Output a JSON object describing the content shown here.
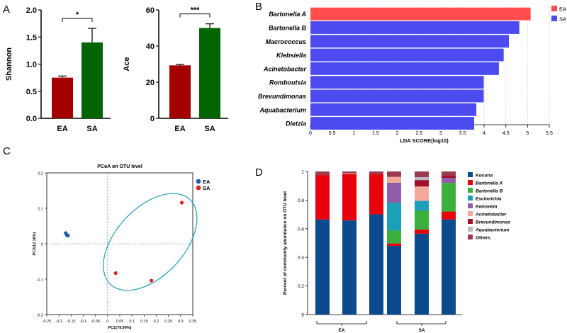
{
  "panel_letters": [
    "A",
    "B",
    "C",
    "D"
  ],
  "chart_data": [
    {
      "panel": "A",
      "type": "bar",
      "ylabel": "Shannon",
      "categories": [
        "EA",
        "SA"
      ],
      "values": [
        0.75,
        1.4
      ],
      "errors": [
        0.03,
        0.26
      ],
      "colors": [
        "#a50000",
        "#006400"
      ],
      "ylim": [
        0,
        2.0
      ],
      "yticks": [
        "0.0",
        "0.5",
        "1.0",
        "1.5",
        "2.0"
      ],
      "significance": "*"
    },
    {
      "panel": "A",
      "type": "bar",
      "ylabel": "Ace",
      "categories": [
        "EA",
        "SA"
      ],
      "values": [
        29.3,
        50.0
      ],
      "errors": [
        0.6,
        2.3
      ],
      "colors": [
        "#a50000",
        "#006400"
      ],
      "ylim": [
        0,
        60
      ],
      "yticks": [
        "0",
        "20",
        "40",
        "60"
      ],
      "significance": "***"
    },
    {
      "panel": "B",
      "type": "bar",
      "orientation": "horizontal",
      "xlabel": "LDA SCORE(log10)",
      "categories": [
        "Bartonella A",
        "Bartonella B",
        "Macrococcus",
        "Klebsiella",
        "Acinetobacter",
        "Romboutsia",
        "Brevundimonas",
        "Aquabacterium",
        "Dietzia"
      ],
      "values": [
        5.07,
        4.81,
        4.57,
        4.45,
        4.34,
        3.99,
        3.99,
        3.82,
        3.77
      ],
      "groups": [
        "EA",
        "SA",
        "SA",
        "SA",
        "SA",
        "SA",
        "SA",
        "SA",
        "SA"
      ],
      "legend": [
        {
          "name": "EA",
          "color": "#ff4d4d"
        },
        {
          "name": "SA",
          "color": "#4b4bf0"
        }
      ],
      "xlim": [
        0,
        5.5
      ],
      "xticks": [
        "0",
        "0.5",
        "1",
        "1.5",
        "2",
        "2.5",
        "3",
        "3.5",
        "4",
        "4.5",
        "5",
        "5.5"
      ]
    },
    {
      "panel": "C",
      "type": "scatter",
      "title": "PCoA on OTU level",
      "xlabel": "PC1(79.99%)",
      "ylabel": "PC2(12.16%)",
      "xlim": [
        -0.25,
        0.35
      ],
      "ylim": [
        -0.2,
        0.2
      ],
      "xticks": [
        "-0.25",
        "-0.2",
        "-0.15",
        "-0.1",
        "-0.05",
        "0",
        "0.05",
        "0.1",
        "0.15",
        "0.2",
        "0.25",
        "0.3",
        "0.35"
      ],
      "yticks": [
        "-0.2",
        "-0.1",
        "0",
        "0.1",
        "0.2"
      ],
      "series": [
        {
          "name": "EA",
          "color": "#1f5aa6",
          "points": [
            [
              -0.172,
              0.03
            ],
            [
              -0.167,
              0.024
            ],
            [
              -0.163,
              0.023
            ]
          ]
        },
        {
          "name": "SA",
          "color": "#e02020",
          "points": [
            [
              0.305,
              0.116
            ],
            [
              0.033,
              -0.083
            ],
            [
              0.18,
              -0.104
            ]
          ]
        }
      ],
      "ellipse_color": "#1aa0b0"
    },
    {
      "panel": "D",
      "type": "bar",
      "stacked": true,
      "ylabel": "Percent of community abundance on OTU level",
      "ylim": [
        0,
        1
      ],
      "yticks": [
        "0",
        "0.2",
        "0.4",
        "0.6",
        "0.8",
        "1"
      ],
      "group_labels": [
        "EA",
        "SA"
      ],
      "group_sizes": [
        3,
        3
      ],
      "series": [
        {
          "name": "Kocuria",
          "color": "#0b4a8c",
          "values": [
            0.665,
            0.658,
            0.7,
            0.48,
            0.565,
            0.665
          ]
        },
        {
          "name": "Bartonella A",
          "color": "#e8000c",
          "values": [
            0.31,
            0.325,
            0.28,
            0.017,
            0.03,
            0.055
          ]
        },
        {
          "name": "Bartonella B",
          "color": "#3cb03c",
          "values": [
            0.0,
            0.0,
            0.0,
            0.09,
            0.13,
            0.2
          ]
        },
        {
          "name": "Escherichia",
          "color": "#1ba0b8",
          "values": [
            0.0,
            0.0,
            0.0,
            0.195,
            0.07,
            0.0
          ]
        },
        {
          "name": "Klebsiella",
          "color": "#8e5ea8",
          "values": [
            0.0,
            0.0,
            0.0,
            0.14,
            0.0,
            0.035
          ]
        },
        {
          "name": "Acinetobacter",
          "color": "#f5a99a",
          "values": [
            0.0,
            0.0,
            0.0,
            0.04,
            0.1,
            0.0
          ]
        },
        {
          "name": "Brevundimonas",
          "color": "#a0102a",
          "values": [
            0.0,
            0.0,
            0.0,
            0.0,
            0.045,
            0.015
          ]
        },
        {
          "name": "Aquabacterium",
          "color": "#b8bcc0",
          "values": [
            0.0,
            0.005,
            0.0,
            0.0,
            0.02,
            0.0
          ]
        },
        {
          "name": "Others",
          "color": "#9c3b50",
          "values": [
            0.025,
            0.012,
            0.02,
            0.038,
            0.04,
            0.03
          ]
        }
      ]
    }
  ]
}
